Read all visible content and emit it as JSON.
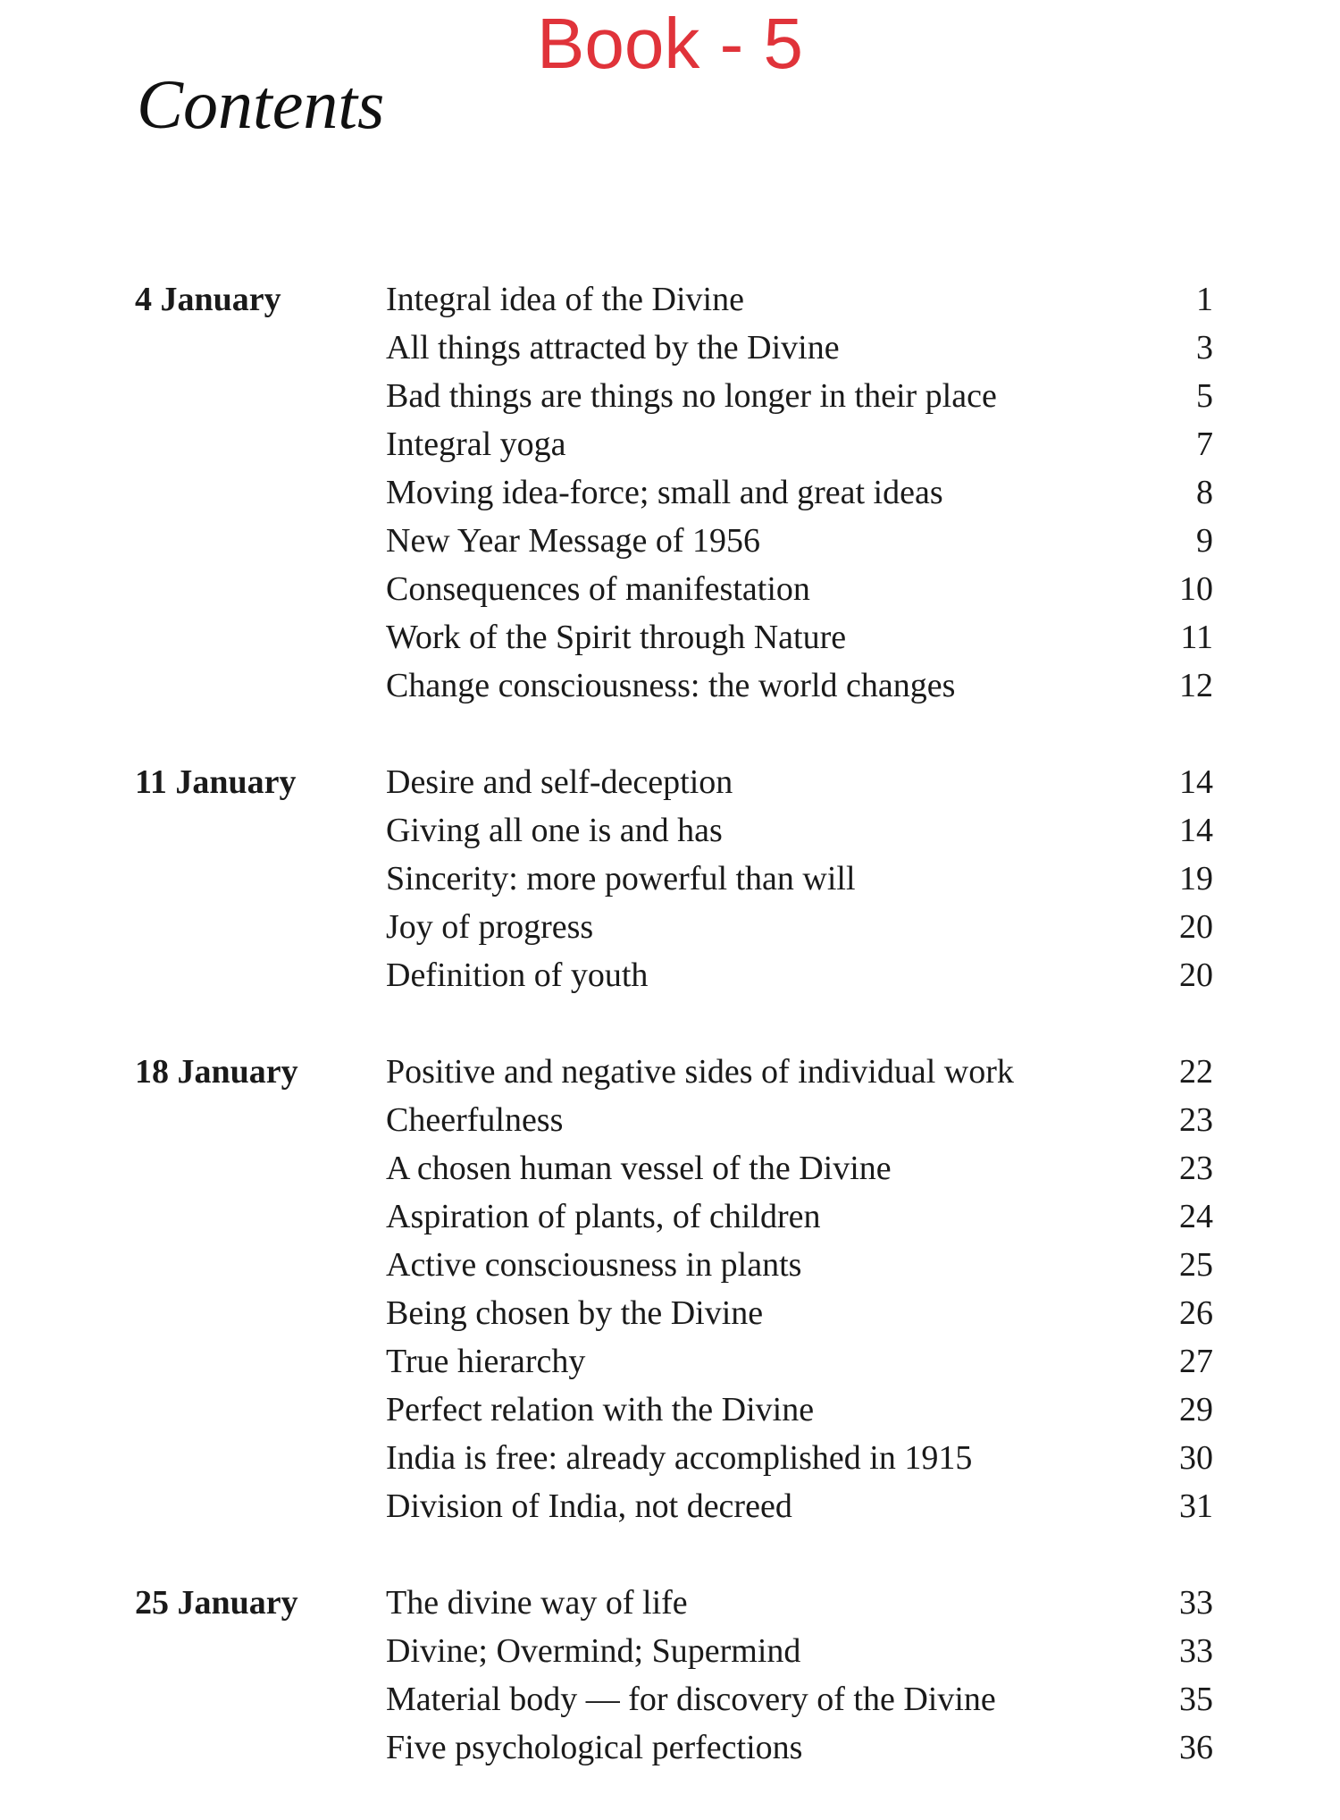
{
  "header": {
    "book_label": "Book - 5",
    "title": "Contents",
    "book_label_color": "#e0333a"
  },
  "sections": [
    {
      "date": "4 January",
      "entries": [
        {
          "title": "Integral idea of the Divine",
          "page": "1"
        },
        {
          "title": "All things attracted by the Divine",
          "page": "3"
        },
        {
          "title": "Bad things are things no longer in their place",
          "page": "5"
        },
        {
          "title": "Integral yoga",
          "page": "7"
        },
        {
          "title": "Moving idea-force; small and great ideas",
          "page": "8"
        },
        {
          "title": "New Year Message of 1956",
          "page": "9"
        },
        {
          "title": "Consequences of manifestation",
          "page": "10"
        },
        {
          "title": "Work of the Spirit through Nature",
          "page": "11"
        },
        {
          "title": "Change consciousness: the world changes",
          "page": "12"
        }
      ]
    },
    {
      "date": "11 January",
      "entries": [
        {
          "title": "Desire and self-deception",
          "page": "14"
        },
        {
          "title": "Giving all one is and has",
          "page": "14"
        },
        {
          "title": "Sincerity: more powerful than will",
          "page": "19"
        },
        {
          "title": "Joy of progress",
          "page": "20"
        },
        {
          "title": "Definition of youth",
          "page": "20"
        }
      ]
    },
    {
      "date": "18 January",
      "entries": [
        {
          "title": "Positive and negative sides of individual work",
          "page": "22"
        },
        {
          "title": "Cheerfulness",
          "page": "23"
        },
        {
          "title": "A chosen human vessel of the Divine",
          "page": "23"
        },
        {
          "title": "Aspiration of plants, of children",
          "page": "24"
        },
        {
          "title": "Active consciousness in plants",
          "page": "25"
        },
        {
          "title": "Being chosen by the Divine",
          "page": "26"
        },
        {
          "title": "True hierarchy",
          "page": "27"
        },
        {
          "title": "Perfect relation with the Divine",
          "page": "29"
        },
        {
          "title": "India is free: already accomplished in 1915",
          "page": "30"
        },
        {
          "title": "Division of India, not decreed",
          "page": "31"
        }
      ]
    },
    {
      "date": "25 January",
      "entries": [
        {
          "title": "The divine way of life",
          "page": "33"
        },
        {
          "title": "Divine; Overmind; Supermind",
          "page": "33"
        },
        {
          "title": "Material body — for discovery of the Divine",
          "page": "35"
        },
        {
          "title": "Five psychological perfections",
          "page": "36"
        }
      ]
    }
  ]
}
